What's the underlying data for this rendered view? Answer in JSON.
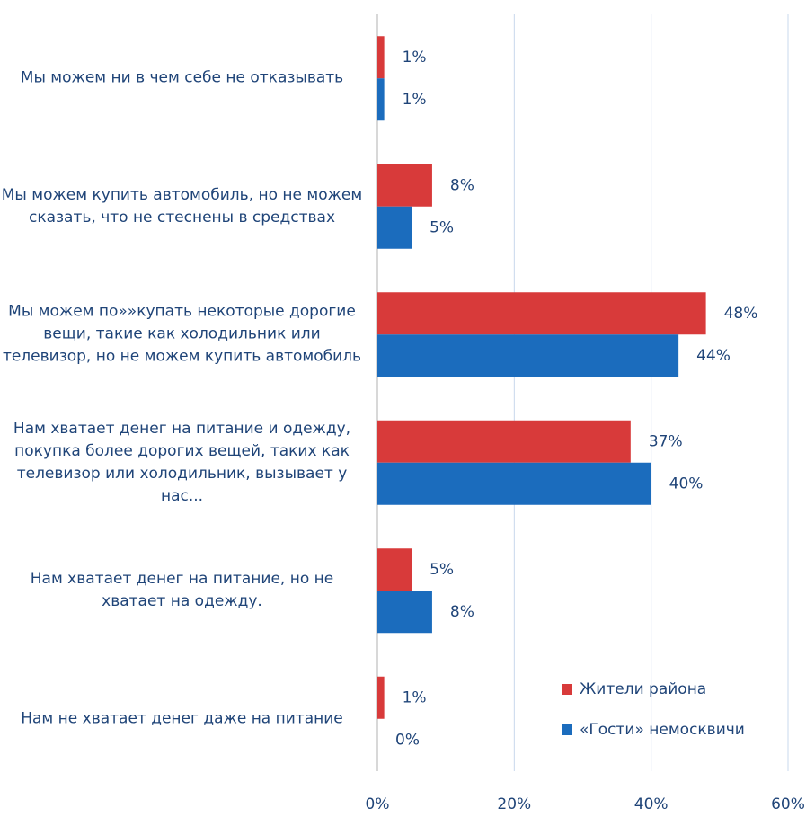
{
  "chart_data": {
    "type": "hbar",
    "categories": [
      "Мы можем ни в чем себе не отказывать",
      "Мы можем купить автомобиль, но не можем сказать, что не стеснены в средствах",
      "Мы можем по»»купать некоторые дорогие вещи, такие как холодильник или телевизор, но не можем купить автомобиль",
      "Нам хватает денег на питание и одежду, покупка более дорогих вещей, таких как телевизор или холодильник, вызывает у нас...",
      "Нам хватает денег на питание, но не хватает на одежду.",
      "Нам не хватает денег даже на питание"
    ],
    "series": [
      {
        "name": "Жители района",
        "color": "#d83a3a",
        "values": [
          1,
          8,
          48,
          37,
          5,
          1
        ],
        "value_labels": [
          "1%",
          "8%",
          "48%",
          "37%",
          "5%",
          "1%"
        ]
      },
      {
        "name": "«Гости» немосквичи",
        "color": "#1b6cbd",
        "values": [
          1,
          5,
          44,
          40,
          8,
          0
        ],
        "value_labels": [
          "1%",
          "5%",
          "44%",
          "40%",
          "8%",
          "0%"
        ]
      }
    ],
    "xlim": [
      0,
      60
    ],
    "xticks": [
      {
        "value": 0,
        "label": "0%"
      },
      {
        "value": 20,
        "label": "20%"
      },
      {
        "value": 40,
        "label": "40%"
      },
      {
        "value": 60,
        "label": "60%"
      }
    ],
    "grid": true,
    "legend": "lower right"
  }
}
